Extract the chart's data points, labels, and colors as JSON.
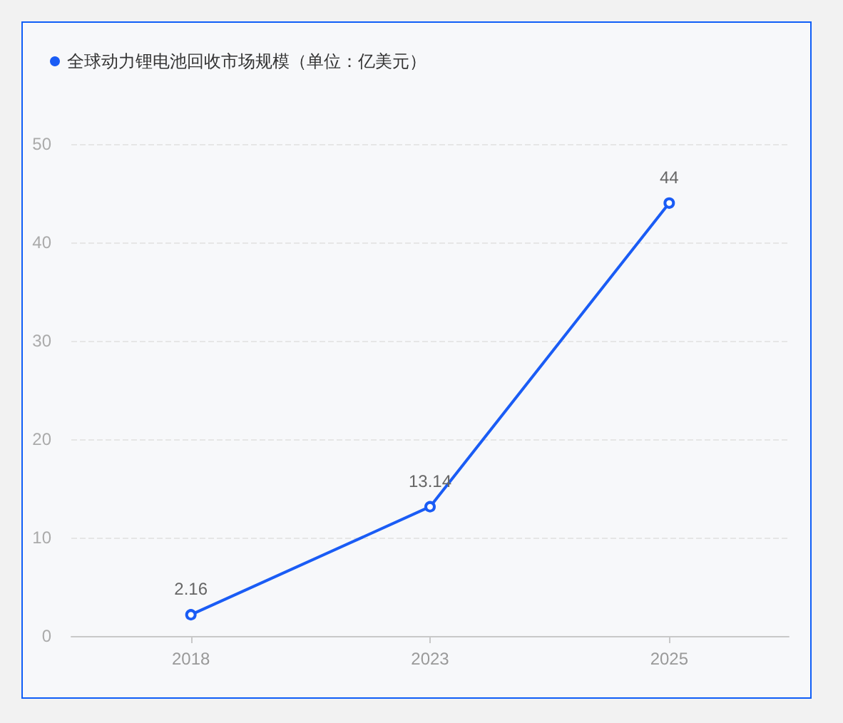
{
  "chart_data": {
    "type": "line",
    "categories": [
      "2018",
      "2023",
      "2025"
    ],
    "series": [
      {
        "name": "全球动力锂电池回收市场规模（单位：亿美元）",
        "color": "#1a5cf5",
        "values": [
          2.16,
          13.14,
          44
        ]
      }
    ],
    "ylim": [
      0,
      50
    ],
    "yticks": [
      0,
      10,
      20,
      30,
      40,
      50
    ],
    "grid": "y",
    "legend": "top left",
    "marker": "circle",
    "line_style": "solid",
    "data_labels": true
  }
}
